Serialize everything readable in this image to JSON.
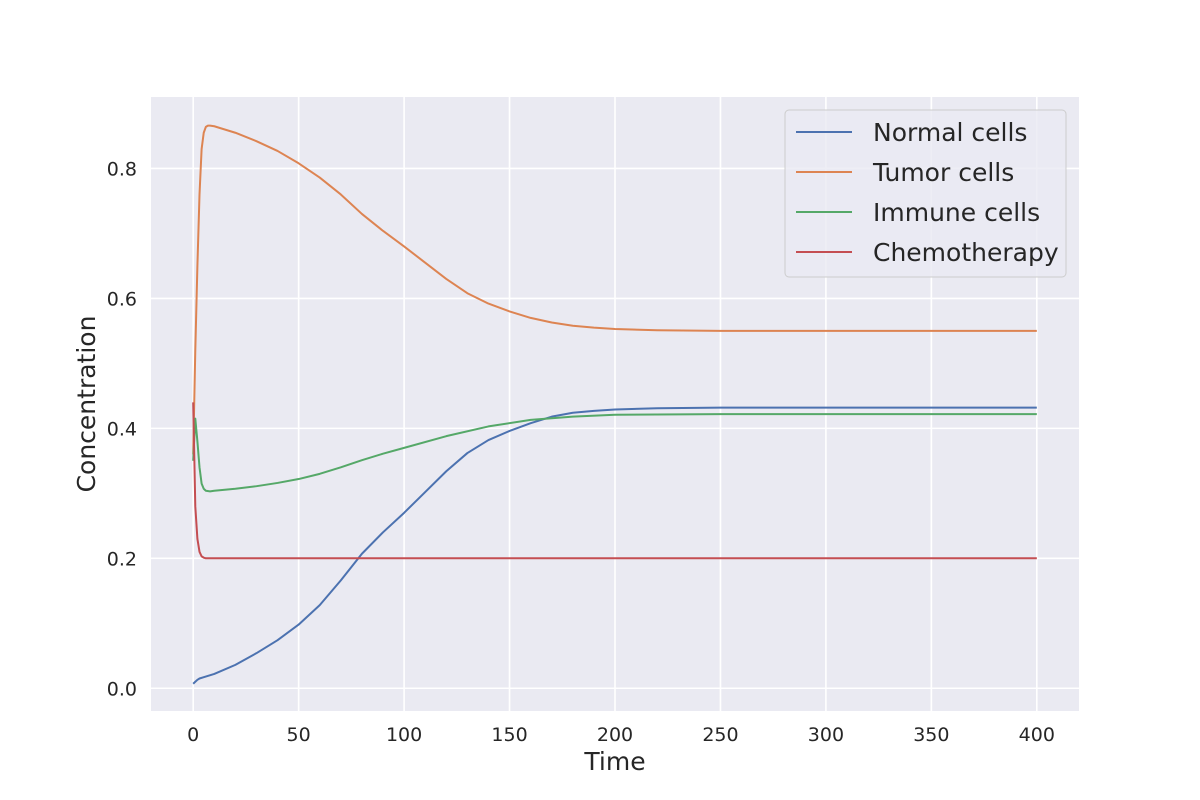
{
  "chart_data": {
    "type": "line",
    "title": "",
    "xlabel": "Time",
    "ylabel": "Concentration",
    "xlim": [
      -20,
      420
    ],
    "ylim": [
      -0.035,
      0.91
    ],
    "xticks": [
      0,
      50,
      100,
      150,
      200,
      250,
      300,
      350,
      400
    ],
    "xtick_labels": [
      "0",
      "50",
      "100",
      "150",
      "200",
      "250",
      "300",
      "350",
      "400"
    ],
    "yticks": [
      0.0,
      0.2,
      0.4,
      0.6,
      0.8
    ],
    "ytick_labels": [
      "0.0",
      "0.2",
      "0.4",
      "0.6",
      "0.8"
    ],
    "grid": true,
    "legend_position": "top-right",
    "background": "#eaeaf2",
    "series": [
      {
        "name": "Normal cells",
        "color": "#4c72b0",
        "x": [
          0,
          1,
          2,
          3,
          5,
          10,
          20,
          30,
          40,
          50,
          60,
          70,
          80,
          90,
          100,
          110,
          120,
          130,
          140,
          150,
          160,
          170,
          180,
          190,
          200,
          220,
          250,
          300,
          350,
          400
        ],
        "y": [
          0.007,
          0.01,
          0.013,
          0.015,
          0.017,
          0.022,
          0.036,
          0.054,
          0.074,
          0.098,
          0.128,
          0.166,
          0.207,
          0.24,
          0.27,
          0.302,
          0.334,
          0.362,
          0.382,
          0.396,
          0.408,
          0.418,
          0.424,
          0.427,
          0.429,
          0.431,
          0.432,
          0.432,
          0.432,
          0.432
        ]
      },
      {
        "name": "Tumor cells",
        "color": "#dd8452",
        "x": [
          0,
          1,
          2,
          3,
          4,
          5,
          6,
          7,
          8,
          10,
          20,
          30,
          40,
          50,
          60,
          70,
          80,
          90,
          100,
          110,
          120,
          130,
          140,
          150,
          160,
          170,
          180,
          190,
          200,
          220,
          250,
          300,
          350,
          400
        ],
        "y": [
          0.36,
          0.52,
          0.65,
          0.76,
          0.83,
          0.855,
          0.864,
          0.866,
          0.866,
          0.865,
          0.855,
          0.842,
          0.827,
          0.808,
          0.786,
          0.76,
          0.73,
          0.704,
          0.68,
          0.655,
          0.63,
          0.608,
          0.592,
          0.58,
          0.57,
          0.563,
          0.558,
          0.555,
          0.553,
          0.551,
          0.55,
          0.55,
          0.55,
          0.55
        ]
      },
      {
        "name": "Immune cells",
        "color": "#55a868",
        "x": [
          0,
          1,
          2,
          3,
          4,
          5,
          6,
          8,
          10,
          20,
          30,
          40,
          50,
          60,
          70,
          80,
          90,
          100,
          120,
          140,
          160,
          180,
          200,
          250,
          300,
          350,
          400
        ],
        "y": [
          0.35,
          0.415,
          0.38,
          0.34,
          0.315,
          0.307,
          0.304,
          0.303,
          0.304,
          0.307,
          0.311,
          0.316,
          0.322,
          0.33,
          0.34,
          0.351,
          0.361,
          0.37,
          0.388,
          0.403,
          0.413,
          0.418,
          0.421,
          0.422,
          0.422,
          0.422,
          0.422
        ]
      },
      {
        "name": "Chemotherapy",
        "color": "#c44e52",
        "x": [
          0,
          0.5,
          1,
          2,
          3,
          4,
          5,
          6,
          8,
          10,
          50,
          100,
          200,
          300,
          400
        ],
        "y": [
          0.44,
          0.36,
          0.28,
          0.23,
          0.21,
          0.203,
          0.201,
          0.2,
          0.2,
          0.2,
          0.2,
          0.2,
          0.2,
          0.2,
          0.2
        ]
      }
    ]
  }
}
